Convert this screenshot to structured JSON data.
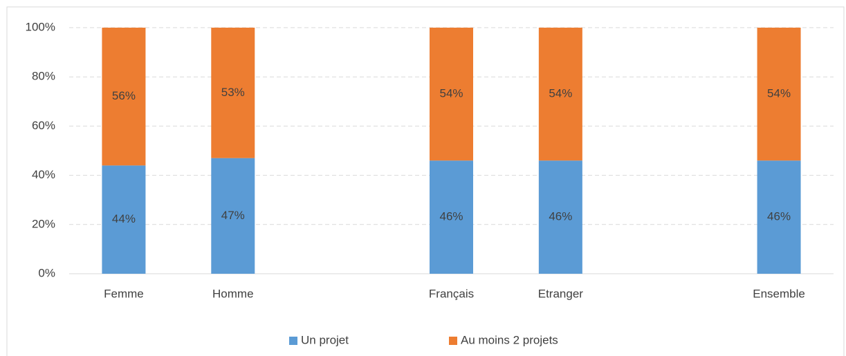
{
  "chart_data": {
    "type": "stacked_bar",
    "categories": [
      "Femme",
      "Homme",
      null,
      "Français",
      "Etranger",
      null,
      "Ensemble"
    ],
    "series": [
      {
        "name": "Un projet",
        "color": "#5b9bd5",
        "values": [
          44,
          47,
          null,
          46,
          46,
          null,
          46
        ],
        "value_labels": [
          "44%",
          "47%",
          null,
          "46%",
          "46%",
          null,
          "46%"
        ]
      },
      {
        "name": "Au moins 2 projets",
        "color": "#ed7d31",
        "values": [
          56,
          53,
          null,
          54,
          54,
          null,
          54
        ],
        "value_labels": [
          "56%",
          "53%",
          null,
          "54%",
          "54%",
          null,
          "54%"
        ]
      }
    ],
    "ylim": [
      0,
      100
    ],
    "yticks": [
      {
        "value": 0,
        "label": "0%"
      },
      {
        "value": 20,
        "label": "20%"
      },
      {
        "value": 40,
        "label": "40%"
      },
      {
        "value": 60,
        "label": "60%"
      },
      {
        "value": 80,
        "label": "80%"
      },
      {
        "value": 100,
        "label": "100%"
      }
    ],
    "grid": true,
    "legend": "bottom"
  }
}
